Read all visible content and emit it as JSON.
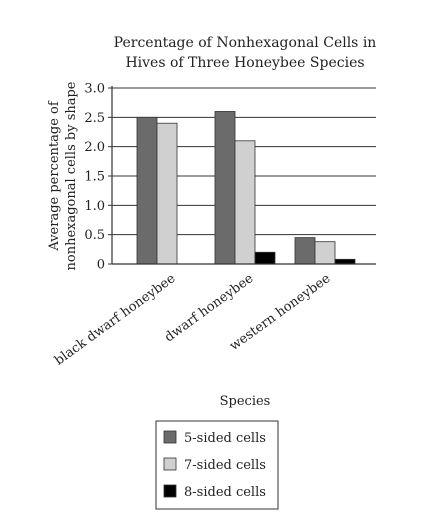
{
  "chart_data": {
    "type": "bar",
    "title_lines": [
      "Percentage of Nonhexagonal Cells in",
      "Hives of Three Honeybee Species"
    ],
    "ylabel_lines": [
      "Average percentage of",
      "nonhexagonal cells by shape"
    ],
    "xlabel": "Species",
    "ylim": [
      0,
      3.0
    ],
    "yticks": [
      "0",
      "0.5",
      "1.0",
      "1.5",
      "2.0",
      "2.5",
      "3.0"
    ],
    "grid": true,
    "categories": [
      "black dwarf honeybee",
      "dwarf honeybee",
      "western honeybee"
    ],
    "series": [
      {
        "name": "5-sided cells",
        "color": "#6b6b6b",
        "values": [
          2.5,
          2.6,
          0.45
        ]
      },
      {
        "name": "7-sided cells",
        "color": "#d0d0d0",
        "values": [
          2.4,
          2.1,
          0.38
        ]
      },
      {
        "name": "8-sided cells",
        "color": "#000000",
        "values": [
          0,
          0.2,
          0.08
        ]
      }
    ],
    "legend_position": "bottom"
  }
}
